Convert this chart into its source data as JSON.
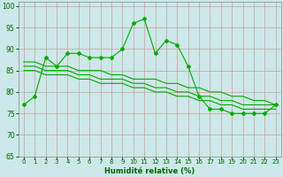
{
  "xlabel": "Humidité relative (%)",
  "background_color": "#cce8e8",
  "grid_color": "#c8a0a0",
  "line_color": "#00aa00",
  "x": [
    0,
    1,
    2,
    3,
    4,
    5,
    6,
    7,
    8,
    9,
    10,
    11,
    12,
    13,
    14,
    15,
    16,
    17,
    18,
    19,
    20,
    21,
    22,
    23
  ],
  "y_main": [
    77,
    79,
    88,
    86,
    89,
    89,
    88,
    88,
    88,
    90,
    96,
    97,
    89,
    92,
    91,
    86,
    79,
    76,
    76,
    75,
    75,
    75,
    75,
    77
  ],
  "y_line1": [
    87,
    87,
    86,
    86,
    86,
    85,
    85,
    85,
    84,
    84,
    83,
    83,
    83,
    82,
    82,
    81,
    81,
    80,
    80,
    79,
    79,
    78,
    78,
    77
  ],
  "y_line2": [
    86,
    86,
    85,
    85,
    85,
    84,
    84,
    83,
    83,
    83,
    82,
    82,
    81,
    81,
    80,
    80,
    79,
    79,
    78,
    78,
    77,
    77,
    77,
    77
  ],
  "y_line3": [
    85,
    85,
    84,
    84,
    84,
    83,
    83,
    82,
    82,
    82,
    81,
    81,
    80,
    80,
    79,
    79,
    78,
    78,
    77,
    77,
    76,
    76,
    76,
    76
  ],
  "ylim": [
    65,
    101
  ],
  "xlim": [
    -0.5,
    23.5
  ],
  "yticks": [
    65,
    70,
    75,
    80,
    85,
    90,
    95,
    100
  ],
  "xticks": [
    0,
    1,
    2,
    3,
    4,
    5,
    6,
    7,
    8,
    9,
    10,
    11,
    12,
    13,
    14,
    15,
    16,
    17,
    18,
    19,
    20,
    21,
    22,
    23
  ]
}
